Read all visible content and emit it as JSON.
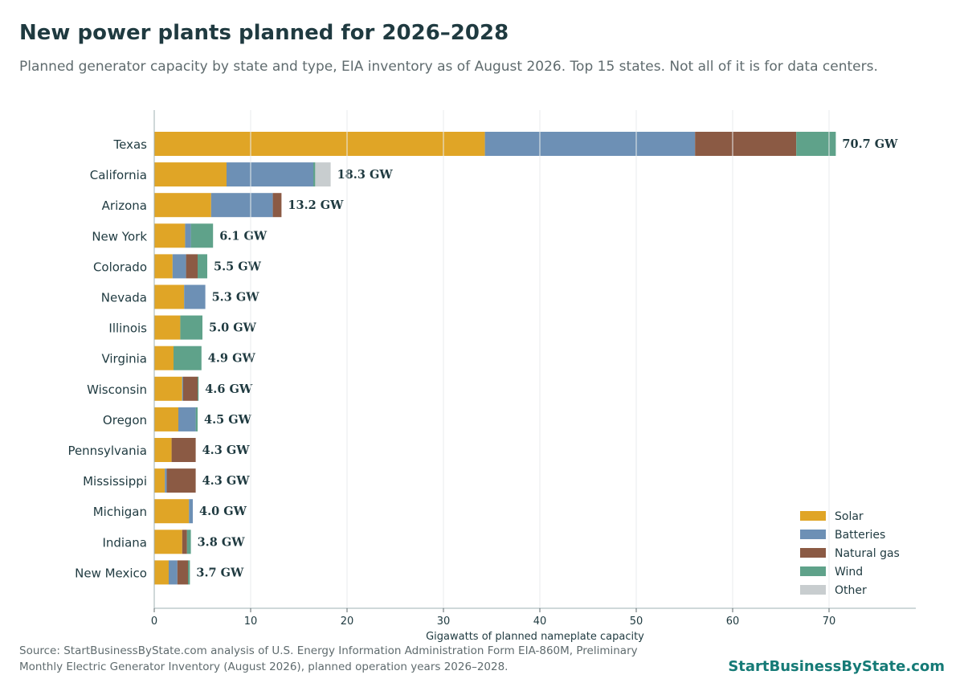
{
  "header": {
    "title": "New power plants planned for 2026–2028",
    "subtitle": "Planned generator capacity by state and type, EIA inventory as of August 2026. Top 15 states. Not all of it is for data centers."
  },
  "footer": {
    "source_line1": "Source: StartBusinessByState.com analysis of U.S. Energy Information Administration Form EIA-860M, Preliminary",
    "source_line2": "Monthly Electric Generator Inventory (August 2026), planned operation years 2026–2028.",
    "brand": "StartBusinessByState.com"
  },
  "chart_data": {
    "type": "bar",
    "orientation": "horizontal",
    "stacked": true,
    "categories": [
      "Texas",
      "California",
      "Arizona",
      "New York",
      "Colorado",
      "Nevada",
      "Illinois",
      "Virginia",
      "Wisconsin",
      "Oregon",
      "Pennsylvania",
      "Mississippi",
      "Michigan",
      "Indiana",
      "New Mexico"
    ],
    "series": [
      {
        "name": "Solar",
        "color": "#e0a526",
        "values": [
          34.3,
          7.5,
          5.9,
          3.2,
          1.9,
          3.1,
          2.7,
          2.0,
          2.9,
          2.5,
          1.8,
          1.1,
          3.6,
          2.9,
          1.5
        ]
      },
      {
        "name": "Batteries",
        "color": "#6d90b5",
        "values": [
          21.8,
          9.0,
          6.4,
          0.6,
          1.4,
          2.2,
          0.0,
          0.0,
          0.1,
          1.8,
          0.0,
          0.2,
          0.4,
          0.0,
          0.9
        ]
      },
      {
        "name": "Natural gas",
        "color": "#8b5a44",
        "values": [
          10.5,
          0.0,
          0.9,
          0.0,
          1.2,
          0.0,
          0.0,
          0.0,
          1.5,
          0.0,
          2.5,
          3.0,
          0.0,
          0.5,
          1.1
        ]
      },
      {
        "name": "Wind",
        "color": "#5fa28a",
        "values": [
          4.1,
          0.2,
          0.0,
          2.3,
          1.0,
          0.0,
          2.3,
          2.9,
          0.1,
          0.2,
          0.0,
          0.0,
          0.0,
          0.4,
          0.2
        ]
      },
      {
        "name": "Other",
        "color": "#c8cdcf",
        "values": [
          0.0,
          1.6,
          0.0,
          0.0,
          0.0,
          0.0,
          0.0,
          0.0,
          0.0,
          0.0,
          0.0,
          0.0,
          0.0,
          0.0,
          0.0
        ]
      }
    ],
    "data_labels": [
      "70.7 GW",
      "18.3 GW",
      "13.2 GW",
      "6.1 GW",
      "5.5 GW",
      "5.3 GW",
      "5.0 GW",
      "4.9 GW",
      "4.6 GW",
      "4.5 GW",
      "4.3 GW",
      "4.3 GW",
      "4.0 GW",
      "3.8 GW",
      "3.7 GW"
    ],
    "xlabel": "Gigawatts of planned nameplate capacity",
    "ylabel": "",
    "xlim": [
      0,
      79
    ],
    "xticks": [
      0,
      10,
      20,
      30,
      40,
      50,
      60,
      70
    ],
    "grid": "vertical, drawn over bars",
    "legend_position": "bottom-right"
  }
}
